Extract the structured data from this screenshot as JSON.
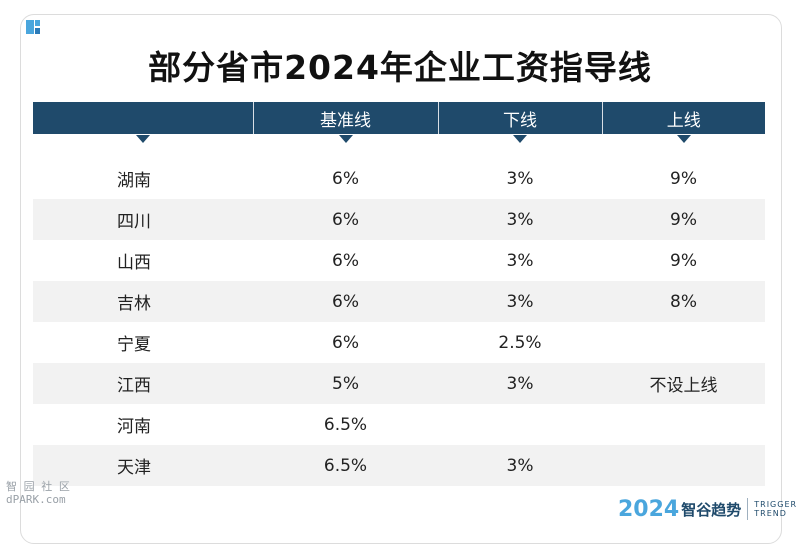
{
  "title": "部分省市2024年企业工资指导线",
  "accent_color": "#1f4a6b",
  "chart_data": {
    "type": "table",
    "title": "部分省市2024年企业工资指导线",
    "columns": [
      "",
      "基准线",
      "下线",
      "上线"
    ],
    "rows": [
      {
        "province": "湖南",
        "base": "6%",
        "lower": "3%",
        "upper": "9%"
      },
      {
        "province": "四川",
        "base": "6%",
        "lower": "3%",
        "upper": "9%"
      },
      {
        "province": "山西",
        "base": "6%",
        "lower": "3%",
        "upper": "9%"
      },
      {
        "province": "吉林",
        "base": "6%",
        "lower": "3%",
        "upper": "8%"
      },
      {
        "province": "宁夏",
        "base": "6%",
        "lower": "2.5%",
        "upper": ""
      },
      {
        "province": "江西",
        "base": "5%",
        "lower": "3%",
        "upper": "不设上线"
      },
      {
        "province": "河南",
        "base": "6.5%",
        "lower": "",
        "upper": ""
      },
      {
        "province": "天津",
        "base": "6.5%",
        "lower": "3%",
        "upper": ""
      }
    ]
  },
  "watermark": {
    "line1": "智 园 社 区",
    "line2": "dPARK.com"
  },
  "brand": {
    "year": "2024",
    "name": "智谷趋势",
    "en_line1": "TRIGGER",
    "en_line2": "TREND"
  }
}
